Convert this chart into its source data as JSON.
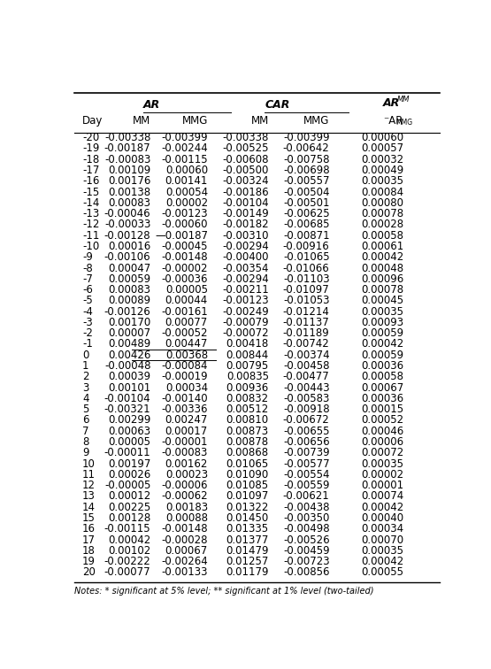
{
  "rows": [
    [
      "-20",
      "-0.00338",
      "-0.00399",
      "-0.00338",
      "-0.00399",
      "0.00060"
    ],
    [
      "-19",
      "-0.00187",
      "-0.00244",
      "-0.00525",
      "-0.00642",
      "0.00057"
    ],
    [
      "-18",
      "-0.00083",
      "-0.00115",
      "-0.00608",
      "-0.00758",
      "0.00032"
    ],
    [
      "-17",
      "0.00109",
      "0.00060",
      "-0.00500",
      "-0.00698",
      "0.00049"
    ],
    [
      "-16",
      "0.00176",
      "0.00141",
      "-0.00324",
      "-0.00557",
      "0.00035"
    ],
    [
      "-15",
      "0.00138",
      "0.00054",
      "-0.00186",
      "-0.00504",
      "0.00084"
    ],
    [
      "-14",
      "0.00083",
      "0.00002",
      "-0.00104",
      "-0.00501",
      "0.00080"
    ],
    [
      "-13",
      "-0.00046",
      "-0.00123",
      "-0.00149",
      "-0.00625",
      "0.00078"
    ],
    [
      "-12",
      "-0.00033",
      "-0.00060",
      "-0.00182",
      "-0.00685",
      "0.00028"
    ],
    [
      "-11",
      "-0.00128",
      "—0.00187",
      "-0.00310",
      "-0.00871",
      "0.00058"
    ],
    [
      "-10",
      "0.00016",
      "-0.00045",
      "-0.00294",
      "-0.00916",
      "0.00061"
    ],
    [
      "-9",
      "-0.00106",
      "-0.00148",
      "-0.00400",
      "-0.01065",
      "0.00042"
    ],
    [
      "-8",
      "0.00047",
      "-0.00002",
      "-0.00354",
      "-0.01066",
      "0.00048"
    ],
    [
      "-7",
      "0.00059",
      "-0.00036",
      "-0.00294",
      "-0.01103",
      "0.00096"
    ],
    [
      "-6",
      "0.00083",
      "0.00005",
      "-0.00211",
      "-0.01097",
      "0.00078"
    ],
    [
      "-5",
      "0.00089",
      "0.00044",
      "-0.00123",
      "-0.01053",
      "0.00045"
    ],
    [
      "-4",
      "-0.00126",
      "-0.00161",
      "-0.00249",
      "-0.01214",
      "0.00035"
    ],
    [
      "-3",
      "0.00170",
      "0.00077",
      "-0.00079",
      "-0.01137",
      "0.00093"
    ],
    [
      "-2",
      "0.00007",
      "-0.00052",
      "-0.00072",
      "-0.01189",
      "0.00059"
    ],
    [
      "-1",
      "0.00489",
      "0.00447",
      "0.00418",
      "-0.00742",
      "0.00042"
    ],
    [
      "0",
      "0.00426",
      "0.00368",
      "0.00844",
      "-0.00374",
      "0.00059"
    ],
    [
      "1",
      "-0.00048",
      "-0.00084",
      "0.00795",
      "-0.00458",
      "0.00036"
    ],
    [
      "2",
      "0.00039",
      "-0.00019",
      "0.00835",
      "-0.00477",
      "0.00058"
    ],
    [
      "3",
      "0.00101",
      "0.00034",
      "0.00936",
      "-0.00443",
      "0.00067"
    ],
    [
      "4",
      "-0.00104",
      "-0.00140",
      "0.00832",
      "-0.00583",
      "0.00036"
    ],
    [
      "5",
      "-0.00321",
      "-0.00336",
      "0.00512",
      "-0.00918",
      "0.00015"
    ],
    [
      "6",
      "0.00299",
      "0.00247",
      "0.00810",
      "-0.00672",
      "0.00052"
    ],
    [
      "7",
      "0.00063",
      "0.00017",
      "0.00873",
      "-0.00655",
      "0.00046"
    ],
    [
      "8",
      "0.00005",
      "-0.00001",
      "0.00878",
      "-0.00656",
      "0.00006"
    ],
    [
      "9",
      "-0.00011",
      "-0.00083",
      "0.00868",
      "-0.00739",
      "0.00072"
    ],
    [
      "10",
      "0.00197",
      "0.00162",
      "0.01065",
      "-0.00577",
      "0.00035"
    ],
    [
      "11",
      "0.00026",
      "0.00023",
      "0.01090",
      "-0.00554",
      "0.00002"
    ],
    [
      "12",
      "-0.00005",
      "-0.00006",
      "0.01085",
      "-0.00559",
      "0.00001"
    ],
    [
      "13",
      "0.00012",
      "-0.00062",
      "0.01097",
      "-0.00621",
      "0.00074"
    ],
    [
      "14",
      "0.00225",
      "0.00183",
      "0.01322",
      "-0.00438",
      "0.00042"
    ],
    [
      "15",
      "0.00128",
      "0.00088",
      "0.01450",
      "-0.00350",
      "0.00040"
    ],
    [
      "16",
      "-0.00115",
      "-0.00148",
      "0.01335",
      "-0.00498",
      "0.00034"
    ],
    [
      "17",
      "0.00042",
      "-0.00028",
      "0.01377",
      "-0.00526",
      "0.00070"
    ],
    [
      "18",
      "0.00102",
      "0.00067",
      "0.01479",
      "-0.00459",
      "0.00035"
    ],
    [
      "19",
      "-0.00222",
      "-0.00264",
      "0.01257",
      "-0.00723",
      "0.00042"
    ],
    [
      "20",
      "-0.00077",
      "-0.00133",
      "0.01179",
      "-0.00856",
      "0.00055"
    ]
  ],
  "bg_color": "#ffffff",
  "text_color": "#000000",
  "font_size": 8.5,
  "header_font_size": 9.0
}
